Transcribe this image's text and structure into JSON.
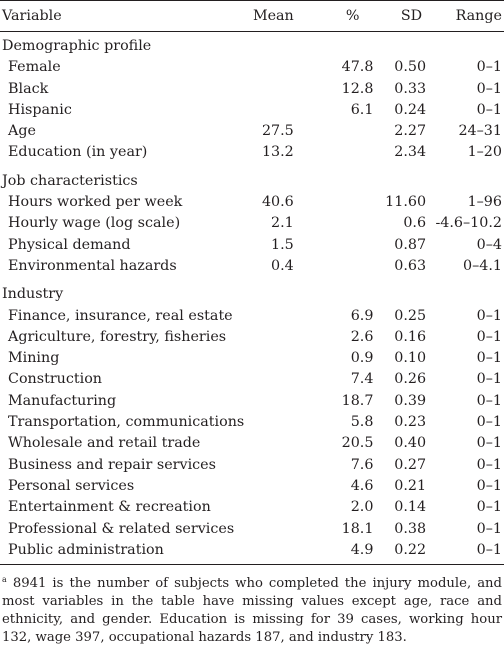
{
  "header": {
    "variable": "Variable",
    "mean": "Mean",
    "pct": "%",
    "sd": "SD",
    "range": "Range"
  },
  "sections": [
    {
      "title": "Demographic profile",
      "rows": [
        {
          "variable": "Female",
          "mean": "",
          "pct": "47.8",
          "sd": "0.50",
          "range": "0–1"
        },
        {
          "variable": "Black",
          "mean": "",
          "pct": "12.8",
          "sd": "0.33",
          "range": "0–1"
        },
        {
          "variable": "Hispanic",
          "mean": "",
          "pct": "6.1",
          "sd": "0.24",
          "range": "0–1"
        },
        {
          "variable": "Age",
          "mean": "27.5",
          "pct": "",
          "sd": "2.27",
          "range": "24–31"
        },
        {
          "variable": "Education (in year)",
          "mean": "13.2",
          "pct": "",
          "sd": "2.34",
          "range": "1–20"
        }
      ]
    },
    {
      "title": "Job characteristics",
      "rows": [
        {
          "variable": "Hours worked per week",
          "mean": "40.6",
          "pct": "",
          "sd": "11.60",
          "range": "1–96"
        },
        {
          "variable": "Hourly wage (log scale)",
          "mean": "2.1",
          "pct": "",
          "sd": "0.6",
          "range": "-4.6–10.2"
        },
        {
          "variable": "Physical demand",
          "mean": "1.5",
          "pct": "",
          "sd": "0.87",
          "range": "0–4"
        },
        {
          "variable": "Environmental hazards",
          "mean": "0.4",
          "pct": "",
          "sd": "0.63",
          "range": "0–4.1"
        }
      ]
    },
    {
      "title": "Industry",
      "rows": [
        {
          "variable": "Finance, insurance, real estate",
          "mean": "",
          "pct": "6.9",
          "sd": "0.25",
          "range": "0–1"
        },
        {
          "variable": "Agriculture, forestry, fisheries",
          "mean": "",
          "pct": "2.6",
          "sd": "0.16",
          "range": "0–1"
        },
        {
          "variable": "Mining",
          "mean": "",
          "pct": "0.9",
          "sd": "0.10",
          "range": "0–1"
        },
        {
          "variable": "Construction",
          "mean": "",
          "pct": "7.4",
          "sd": "0.26",
          "range": "0–1"
        },
        {
          "variable": "Manufacturing",
          "mean": "",
          "pct": "18.7",
          "sd": "0.39",
          "range": "0–1"
        },
        {
          "variable": "Transportation, communications",
          "mean": "",
          "pct": "5.8",
          "sd": "0.23",
          "range": "0–1"
        },
        {
          "variable": "Wholesale and retail trade",
          "mean": "",
          "pct": "20.5",
          "sd": "0.40",
          "range": "0–1"
        },
        {
          "variable": "Business and repair services",
          "mean": "",
          "pct": "7.6",
          "sd": "0.27",
          "range": "0–1"
        },
        {
          "variable": "Personal services",
          "mean": "",
          "pct": "4.6",
          "sd": "0.21",
          "range": "0–1"
        },
        {
          "variable": "Entertainment & recreation",
          "mean": "",
          "pct": "2.0",
          "sd": "0.14",
          "range": "0–1"
        },
        {
          "variable": "Professional & related services",
          "mean": "",
          "pct": "18.1",
          "sd": "0.38",
          "range": "0–1"
        },
        {
          "variable": "Public administration",
          "mean": "",
          "pct": "4.9",
          "sd": "0.22",
          "range": "0–1"
        }
      ]
    }
  ],
  "footnote": {
    "marker": "a",
    "text": "8941 is the number of subjects who completed the injury module, and most variables in the table have missing values except age, race and ethnicity, and gender. Education is missing for 39 cases, working hour 132, wage 397, occupational hazards 187, and industry 183."
  }
}
